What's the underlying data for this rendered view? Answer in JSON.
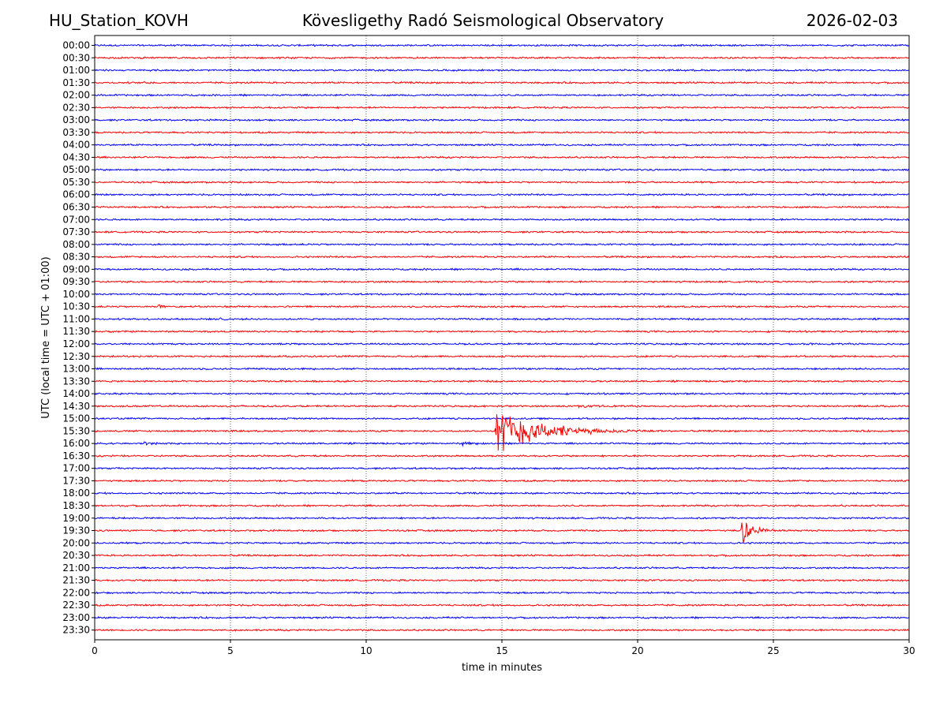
{
  "header": {
    "station": "HU_Station_KOVH",
    "title": "Kövesligethy Radó Seismological Observatory",
    "date": "2026-02-03"
  },
  "chart_data": {
    "type": "line",
    "title": "Kövesligethy Radó Seismological Observatory",
    "xlabel": "time in minutes",
    "ylabel": "UTC (local time = UTC + 01:00)",
    "xlim": [
      0,
      30
    ],
    "x_ticks": [
      0,
      5,
      10,
      15,
      20,
      25,
      30
    ],
    "grid": "vertical dotted at x ticks",
    "trace_colors": [
      "#0000ff",
      "#ff0000"
    ],
    "row_labels": [
      "00:00",
      "00:30",
      "01:00",
      "01:30",
      "02:00",
      "02:30",
      "03:00",
      "03:30",
      "04:00",
      "04:30",
      "05:00",
      "05:30",
      "06:00",
      "06:30",
      "07:00",
      "07:30",
      "08:00",
      "08:30",
      "09:00",
      "09:30",
      "10:00",
      "10:30",
      "11:00",
      "11:30",
      "12:00",
      "12:30",
      "13:00",
      "13:30",
      "14:00",
      "14:30",
      "15:00",
      "15:30",
      "16:00",
      "16:30",
      "17:00",
      "17:30",
      "18:00",
      "18:30",
      "19:00",
      "19:30",
      "20:00",
      "20:30",
      "21:00",
      "21:30",
      "22:00",
      "22:30",
      "23:00",
      "23:30"
    ],
    "noise_level": 0.12,
    "events": [
      {
        "row": "01:30",
        "start_min": 1.8,
        "duration_min": 0.6,
        "amplitude": 0.35
      },
      {
        "row": "10:30",
        "start_min": 2.3,
        "duration_min": 0.8,
        "amplitude": 0.45
      },
      {
        "row": "11:00",
        "start_min": 4.6,
        "duration_min": 0.6,
        "amplitude": 0.3
      },
      {
        "row": "14:30",
        "start_min": 17.8,
        "duration_min": 1.2,
        "amplitude": 0.25
      },
      {
        "row": "15:30",
        "start_min": 14.75,
        "duration_min": 6.5,
        "amplitude": 4.6
      },
      {
        "row": "16:00",
        "start_min": 1.8,
        "duration_min": 1.2,
        "amplitude": 0.35
      },
      {
        "row": "16:00",
        "start_min": 13.5,
        "duration_min": 1.2,
        "amplitude": 0.35
      },
      {
        "row": "19:30",
        "start_min": 23.8,
        "duration_min": 1.8,
        "amplitude": 2.6
      }
    ]
  }
}
